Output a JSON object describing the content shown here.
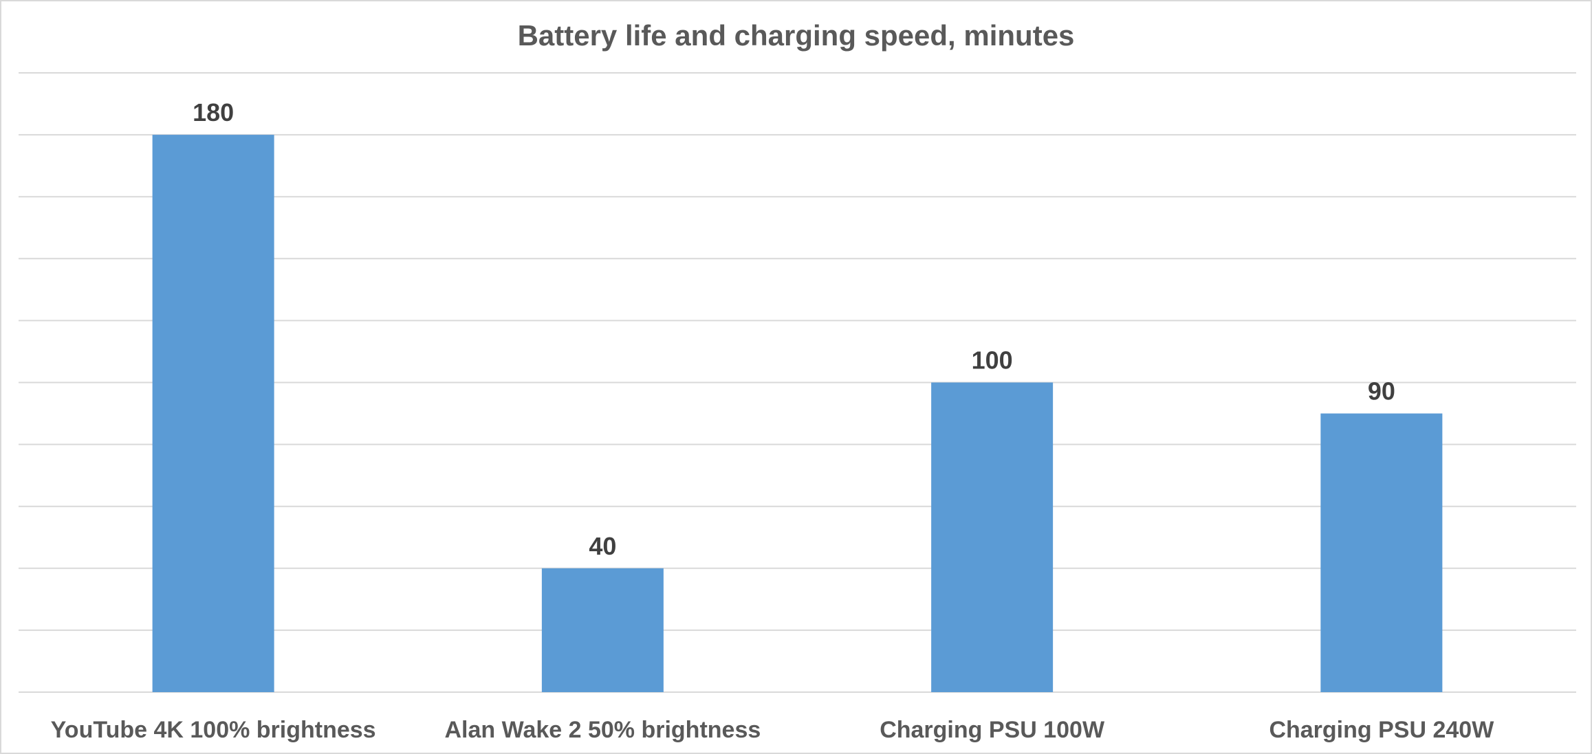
{
  "chart_data": {
    "type": "bar",
    "title": "Battery life and charging speed, minutes",
    "categories": [
      "YouTube 4K 100% brightness",
      "Alan Wake 2 50% brightness",
      "Charging PSU 100W",
      "Charging PSU 240W"
    ],
    "values": [
      180,
      40,
      100,
      90
    ],
    "data_labels": [
      "180",
      "40",
      "100",
      "90"
    ],
    "ylim": [
      0,
      200
    ],
    "y_gridline_step": 20,
    "grid": true,
    "legend": "none",
    "bar_color": "#5b9bd5",
    "xlabel": "",
    "ylabel": ""
  }
}
